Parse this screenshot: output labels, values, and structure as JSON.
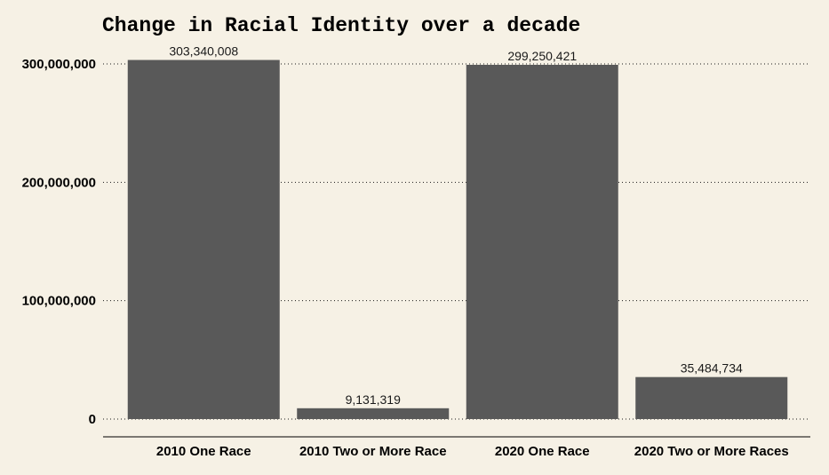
{
  "chart_data": {
    "type": "bar",
    "title": "Change in Racial Identity over a decade",
    "xlabel": "",
    "ylabel": "",
    "categories": [
      "2010 One Race",
      "2010 Two or More Race",
      "2020 One Race",
      "2020 Two or More Races"
    ],
    "values": [
      303340008,
      9131319,
      299250421,
      35484734
    ],
    "value_labels": [
      "303,340,008",
      "9,131,319",
      "299,250,421",
      "35,484,734"
    ],
    "yticks": [
      0,
      100000000,
      200000000,
      300000000
    ],
    "ytick_labels": [
      "0",
      "100,000,000",
      "200,000,000",
      "300,000,000"
    ],
    "ylim": [
      0,
      310000000
    ],
    "grid": "horizontal dotted",
    "bar_color": "#595959",
    "background": "#f6f1e5"
  }
}
